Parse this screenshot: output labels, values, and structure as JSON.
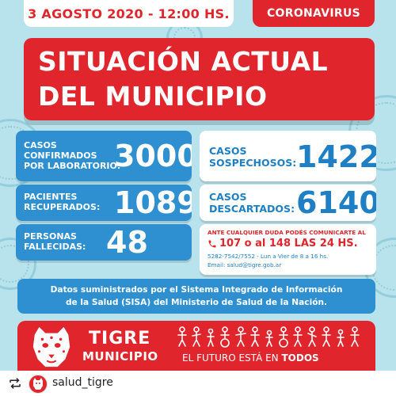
{
  "header": {
    "date": "3 AGOSTO 2020 - 12:00 HS.",
    "badge": "CORONAVIRUS"
  },
  "title": {
    "line1": "SITUACIÓN ACTUAL",
    "line2": "DEL MUNICIPIO"
  },
  "stats": {
    "confirmados": {
      "label_line1": "CASOS",
      "label_line2": "CONFIRMADOS",
      "label_line3": "POR LABORATORIO:",
      "value": "3000"
    },
    "recuperados": {
      "label_line1": "PACIENTES",
      "label_line2": "RECUPERADOS:",
      "value": "1089"
    },
    "fallecidas": {
      "label_line1": "PERSONAS",
      "label_line2": "FALLECIDAS:",
      "value": "48"
    },
    "sospechosos": {
      "label_line1": "CASOS",
      "label_line2": "SOSPECHOSOS:",
      "value": "1422"
    },
    "descartados": {
      "label_line1": "CASOS",
      "label_line2": "DESCARTADOS:",
      "value": "6140"
    }
  },
  "contact": {
    "line1": "ANTE CUALQUIER DUDA PODÉS COMUNICARTE AL",
    "line2": "107 o al 148 LAS 24 HS.",
    "line3": "5282-7542/7552 - Lun a Vier de 8 a 16 hs.",
    "line4": "Email: salud@tigre.gob.ar"
  },
  "source": {
    "line1": "Datos suministrados por el Sistema Integrado de Información",
    "line2": "de la Salud (SISA) del Ministerio de Salud de la Nación."
  },
  "footer": {
    "brand_name": "TIGRE",
    "brand_sub": "MUNICIPIO",
    "slogan_prefix": "EL FUTURO ESTÁ EN ",
    "slogan_bold": "TODOS"
  },
  "repost_bar": {
    "username": "salud_tigre"
  },
  "colors": {
    "red": "#e0262c",
    "blue": "#2e8fd1",
    "light_blue_bg": "#b9e3ec",
    "white": "#ffffff"
  }
}
